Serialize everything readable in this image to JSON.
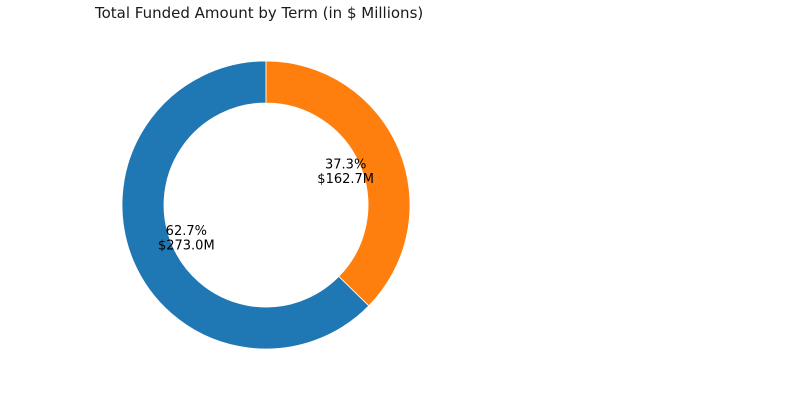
{
  "chart_data": {
    "type": "pie",
    "title": "Total Funded Amount by Term (in $ Millions)",
    "categories": [
      "",
      ""
    ],
    "values": [
      273.0,
      162.7
    ],
    "unit": "$ Millions",
    "percent_labels": [
      "62.7%",
      "37.3%"
    ],
    "value_labels": [
      "$273.0M",
      "$162.7M"
    ],
    "colors": [
      "#1f77b4",
      "#ff7f0e"
    ],
    "donut": true,
    "legend": "none"
  }
}
